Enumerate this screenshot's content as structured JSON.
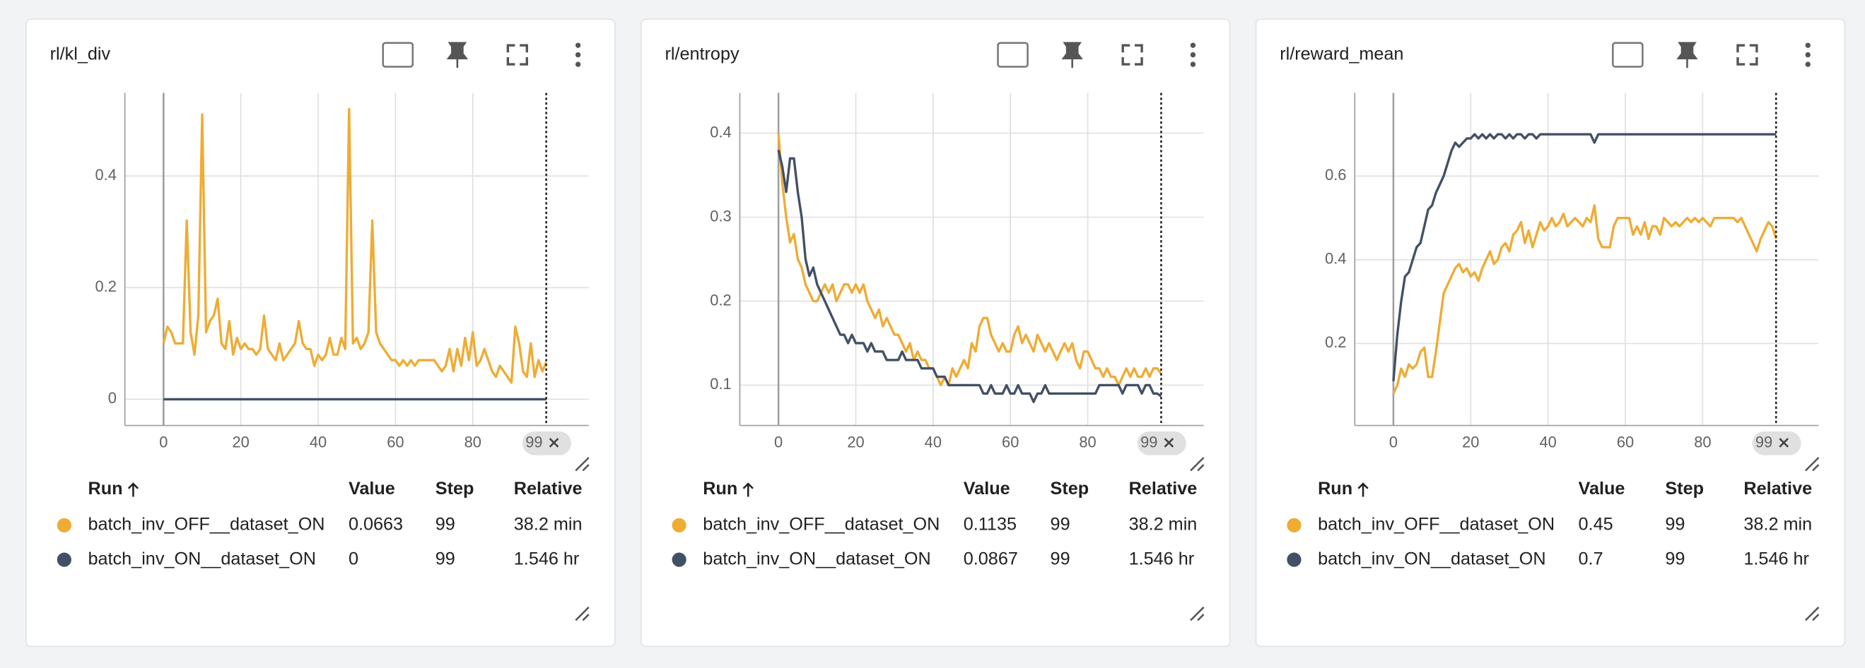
{
  "chart_data": [
    {
      "type": "line",
      "title": "rl/kl_div",
      "x": [
        0,
        1,
        2,
        3,
        4,
        5,
        6,
        7,
        8,
        9,
        10,
        11,
        12,
        13,
        14,
        15,
        16,
        17,
        18,
        19,
        20,
        21,
        22,
        23,
        24,
        25,
        26,
        27,
        28,
        29,
        30,
        31,
        32,
        33,
        34,
        35,
        36,
        37,
        38,
        39,
        40,
        41,
        42,
        43,
        44,
        45,
        46,
        47,
        48,
        49,
        50,
        51,
        52,
        53,
        54,
        55,
        56,
        57,
        58,
        59,
        60,
        61,
        62,
        63,
        64,
        65,
        66,
        67,
        68,
        69,
        70,
        71,
        72,
        73,
        74,
        75,
        76,
        77,
        78,
        79,
        80,
        81,
        82,
        83,
        84,
        85,
        86,
        87,
        88,
        89,
        90,
        91,
        92,
        93,
        94,
        95,
        96,
        97,
        98,
        99
      ],
      "series": [
        {
          "name": "batch_inv_OFF__dataset_ON",
          "color": "#eeac35",
          "values": [
            0.1,
            0.13,
            0.12,
            0.1,
            0.1,
            0.1,
            0.32,
            0.12,
            0.08,
            0.15,
            0.51,
            0.12,
            0.14,
            0.15,
            0.18,
            0.1,
            0.09,
            0.14,
            0.08,
            0.11,
            0.09,
            0.1,
            0.09,
            0.09,
            0.08,
            0.09,
            0.15,
            0.09,
            0.08,
            0.07,
            0.1,
            0.07,
            0.08,
            0.09,
            0.1,
            0.14,
            0.1,
            0.09,
            0.09,
            0.06,
            0.08,
            0.07,
            0.08,
            0.11,
            0.08,
            0.08,
            0.11,
            0.09,
            0.52,
            0.1,
            0.11,
            0.09,
            0.1,
            0.12,
            0.32,
            0.12,
            0.1,
            0.09,
            0.08,
            0.07,
            0.07,
            0.06,
            0.07,
            0.06,
            0.07,
            0.06,
            0.07,
            0.07,
            0.07,
            0.07,
            0.07,
            0.06,
            0.05,
            0.06,
            0.09,
            0.05,
            0.09,
            0.06,
            0.11,
            0.07,
            0.12,
            0.06,
            0.07,
            0.09,
            0.07,
            0.05,
            0.04,
            0.06,
            0.05,
            0.04,
            0.03,
            0.13,
            0.1,
            0.05,
            0.04,
            0.1,
            0.04,
            0.07,
            0.05,
            0.0663
          ]
        },
        {
          "name": "batch_inv_ON__dataset_ON",
          "color": "#425066",
          "values": [
            0,
            0,
            0,
            0,
            0,
            0,
            0,
            0,
            0,
            0,
            0,
            0,
            0,
            0,
            0,
            0,
            0,
            0,
            0,
            0,
            0,
            0,
            0,
            0,
            0,
            0,
            0,
            0,
            0,
            0,
            0,
            0,
            0,
            0,
            0,
            0,
            0,
            0,
            0,
            0,
            0,
            0,
            0,
            0,
            0,
            0,
            0,
            0,
            0,
            0,
            0,
            0,
            0,
            0,
            0,
            0,
            0,
            0,
            0,
            0,
            0,
            0,
            0,
            0,
            0,
            0,
            0,
            0,
            0,
            0,
            0,
            0,
            0,
            0,
            0,
            0,
            0,
            0,
            0,
            0,
            0,
            0,
            0,
            0,
            0,
            0,
            0,
            0,
            0,
            0,
            0,
            0,
            0,
            0,
            0,
            0,
            0,
            0,
            0,
            0
          ]
        }
      ],
      "xlim": [
        -10,
        110
      ],
      "xticks": [
        0,
        20,
        40,
        60,
        80
      ],
      "ylim": [
        -0.047,
        0.549
      ],
      "yticks": [
        0,
        0.2,
        0.4
      ],
      "grid": true,
      "cursor_step": 99
    },
    {
      "type": "line",
      "title": "rl/entropy",
      "x": [
        0,
        1,
        2,
        3,
        4,
        5,
        6,
        7,
        8,
        9,
        10,
        11,
        12,
        13,
        14,
        15,
        16,
        17,
        18,
        19,
        20,
        21,
        22,
        23,
        24,
        25,
        26,
        27,
        28,
        29,
        30,
        31,
        32,
        33,
        34,
        35,
        36,
        37,
        38,
        39,
        40,
        41,
        42,
        43,
        44,
        45,
        46,
        47,
        48,
        49,
        50,
        51,
        52,
        53,
        54,
        55,
        56,
        57,
        58,
        59,
        60,
        61,
        62,
        63,
        64,
        65,
        66,
        67,
        68,
        69,
        70,
        71,
        72,
        73,
        74,
        75,
        76,
        77,
        78,
        79,
        80,
        81,
        82,
        83,
        84,
        85,
        86,
        87,
        88,
        89,
        90,
        91,
        92,
        93,
        94,
        95,
        96,
        97,
        98,
        99
      ],
      "series": [
        {
          "name": "batch_inv_OFF__dataset_ON",
          "color": "#eeac35",
          "values": [
            0.4,
            0.34,
            0.3,
            0.27,
            0.28,
            0.25,
            0.24,
            0.22,
            0.21,
            0.2,
            0.2,
            0.21,
            0.22,
            0.21,
            0.22,
            0.2,
            0.21,
            0.22,
            0.22,
            0.21,
            0.22,
            0.21,
            0.22,
            0.2,
            0.19,
            0.18,
            0.19,
            0.17,
            0.18,
            0.17,
            0.16,
            0.16,
            0.15,
            0.14,
            0.15,
            0.13,
            0.14,
            0.13,
            0.13,
            0.12,
            0.12,
            0.11,
            0.1,
            0.11,
            0.1,
            0.12,
            0.11,
            0.12,
            0.13,
            0.12,
            0.15,
            0.14,
            0.17,
            0.18,
            0.18,
            0.16,
            0.15,
            0.14,
            0.15,
            0.14,
            0.14,
            0.16,
            0.17,
            0.15,
            0.16,
            0.15,
            0.14,
            0.16,
            0.15,
            0.14,
            0.15,
            0.14,
            0.13,
            0.14,
            0.15,
            0.14,
            0.15,
            0.13,
            0.12,
            0.14,
            0.14,
            0.13,
            0.12,
            0.12,
            0.11,
            0.12,
            0.11,
            0.11,
            0.1,
            0.11,
            0.12,
            0.11,
            0.12,
            0.11,
            0.11,
            0.12,
            0.11,
            0.12,
            0.12,
            0.1135
          ]
        },
        {
          "name": "batch_inv_ON__dataset_ON",
          "color": "#425066",
          "values": [
            0.38,
            0.36,
            0.33,
            0.37,
            0.37,
            0.33,
            0.3,
            0.25,
            0.23,
            0.24,
            0.22,
            0.21,
            0.2,
            0.19,
            0.18,
            0.17,
            0.16,
            0.16,
            0.15,
            0.16,
            0.15,
            0.15,
            0.15,
            0.14,
            0.15,
            0.14,
            0.14,
            0.14,
            0.13,
            0.13,
            0.13,
            0.13,
            0.14,
            0.13,
            0.13,
            0.13,
            0.13,
            0.12,
            0.12,
            0.12,
            0.12,
            0.11,
            0.11,
            0.11,
            0.1,
            0.1,
            0.1,
            0.1,
            0.1,
            0.1,
            0.1,
            0.1,
            0.1,
            0.09,
            0.09,
            0.1,
            0.09,
            0.09,
            0.09,
            0.1,
            0.09,
            0.09,
            0.1,
            0.09,
            0.09,
            0.09,
            0.08,
            0.09,
            0.09,
            0.1,
            0.09,
            0.09,
            0.09,
            0.09,
            0.09,
            0.09,
            0.09,
            0.09,
            0.09,
            0.09,
            0.09,
            0.09,
            0.09,
            0.1,
            0.1,
            0.1,
            0.1,
            0.1,
            0.1,
            0.09,
            0.1,
            0.1,
            0.1,
            0.1,
            0.09,
            0.1,
            0.1,
            0.09,
            0.09,
            0.0867
          ]
        }
      ],
      "xlim": [
        -10,
        110
      ],
      "xticks": [
        0,
        20,
        40,
        60,
        80
      ],
      "ylim": [
        0.052,
        0.448
      ],
      "yticks": [
        0.1,
        0.2,
        0.3,
        0.4
      ],
      "grid": true,
      "cursor_step": 99
    },
    {
      "type": "line",
      "title": "rl/reward_mean",
      "x": [
        0,
        1,
        2,
        3,
        4,
        5,
        6,
        7,
        8,
        9,
        10,
        11,
        12,
        13,
        14,
        15,
        16,
        17,
        18,
        19,
        20,
        21,
        22,
        23,
        24,
        25,
        26,
        27,
        28,
        29,
        30,
        31,
        32,
        33,
        34,
        35,
        36,
        37,
        38,
        39,
        40,
        41,
        42,
        43,
        44,
        45,
        46,
        47,
        48,
        49,
        50,
        51,
        52,
        53,
        54,
        55,
        56,
        57,
        58,
        59,
        60,
        61,
        62,
        63,
        64,
        65,
        66,
        67,
        68,
        69,
        70,
        71,
        72,
        73,
        74,
        75,
        76,
        77,
        78,
        79,
        80,
        81,
        82,
        83,
        84,
        85,
        86,
        87,
        88,
        89,
        90,
        91,
        92,
        93,
        94,
        95,
        96,
        97,
        98,
        99
      ],
      "series": [
        {
          "name": "batch_inv_OFF__dataset_ON",
          "color": "#eeac35",
          "values": [
            0.08,
            0.1,
            0.14,
            0.12,
            0.15,
            0.14,
            0.15,
            0.18,
            0.19,
            0.12,
            0.12,
            0.18,
            0.25,
            0.32,
            0.34,
            0.36,
            0.38,
            0.39,
            0.37,
            0.38,
            0.36,
            0.37,
            0.35,
            0.38,
            0.4,
            0.42,
            0.39,
            0.4,
            0.43,
            0.44,
            0.42,
            0.46,
            0.47,
            0.49,
            0.44,
            0.47,
            0.43,
            0.46,
            0.49,
            0.47,
            0.48,
            0.5,
            0.48,
            0.49,
            0.51,
            0.48,
            0.49,
            0.5,
            0.49,
            0.48,
            0.5,
            0.49,
            0.53,
            0.45,
            0.43,
            0.43,
            0.43,
            0.48,
            0.5,
            0.5,
            0.5,
            0.5,
            0.46,
            0.48,
            0.46,
            0.49,
            0.45,
            0.48,
            0.48,
            0.46,
            0.5,
            0.49,
            0.48,
            0.49,
            0.48,
            0.49,
            0.5,
            0.49,
            0.5,
            0.49,
            0.5,
            0.49,
            0.48,
            0.5,
            0.5,
            0.5,
            0.5,
            0.5,
            0.5,
            0.49,
            0.5,
            0.48,
            0.46,
            0.44,
            0.42,
            0.45,
            0.47,
            0.49,
            0.48,
            0.45
          ]
        },
        {
          "name": "batch_inv_ON__dataset_ON",
          "color": "#425066",
          "values": [
            0.11,
            0.22,
            0.3,
            0.36,
            0.37,
            0.4,
            0.43,
            0.44,
            0.48,
            0.52,
            0.53,
            0.56,
            0.58,
            0.6,
            0.63,
            0.66,
            0.68,
            0.67,
            0.68,
            0.69,
            0.69,
            0.7,
            0.69,
            0.7,
            0.69,
            0.7,
            0.69,
            0.7,
            0.7,
            0.69,
            0.7,
            0.69,
            0.7,
            0.7,
            0.69,
            0.7,
            0.7,
            0.69,
            0.7,
            0.7,
            0.7,
            0.7,
            0.7,
            0.7,
            0.7,
            0.7,
            0.7,
            0.7,
            0.7,
            0.7,
            0.7,
            0.7,
            0.68,
            0.7,
            0.7,
            0.7,
            0.7,
            0.7,
            0.7,
            0.7,
            0.7,
            0.7,
            0.7,
            0.7,
            0.7,
            0.7,
            0.7,
            0.7,
            0.7,
            0.7,
            0.7,
            0.7,
            0.7,
            0.7,
            0.7,
            0.7,
            0.7,
            0.7,
            0.7,
            0.7,
            0.7,
            0.7,
            0.7,
            0.7,
            0.7,
            0.7,
            0.7,
            0.7,
            0.7,
            0.7,
            0.7,
            0.7,
            0.7,
            0.7,
            0.7,
            0.7,
            0.7,
            0.7,
            0.7,
            0.7
          ]
        }
      ],
      "xlim": [
        -10,
        110
      ],
      "xticks": [
        0,
        20,
        40,
        60,
        80
      ],
      "ylim": [
        0.004,
        0.799
      ],
      "yticks": [
        0.2,
        0.4,
        0.6
      ],
      "grid": true,
      "cursor_step": 99
    }
  ],
  "run_tables": [
    {
      "columns": [
        "Run",
        "Value",
        "Step",
        "Relative"
      ],
      "rows": [
        [
          "batch_inv_OFF__dataset_ON",
          "0.0663",
          "99",
          "38.2 min"
        ],
        [
          "batch_inv_ON__dataset_ON",
          "0",
          "99",
          "1.546 hr"
        ]
      ]
    },
    {
      "columns": [
        "Run",
        "Value",
        "Step",
        "Relative"
      ],
      "rows": [
        [
          "batch_inv_OFF__dataset_ON",
          "0.1135",
          "99",
          "38.2 min"
        ],
        [
          "batch_inv_ON__dataset_ON",
          "0.0867",
          "99",
          "1.546 hr"
        ]
      ]
    },
    {
      "columns": [
        "Run",
        "Value",
        "Step",
        "Relative"
      ],
      "rows": [
        [
          "batch_inv_OFF__dataset_ON",
          "0.45",
          "99",
          "38.2 min"
        ],
        [
          "batch_inv_ON__dataset_ON",
          "0.7",
          "99",
          "1.546 hr"
        ]
      ]
    }
  ]
}
